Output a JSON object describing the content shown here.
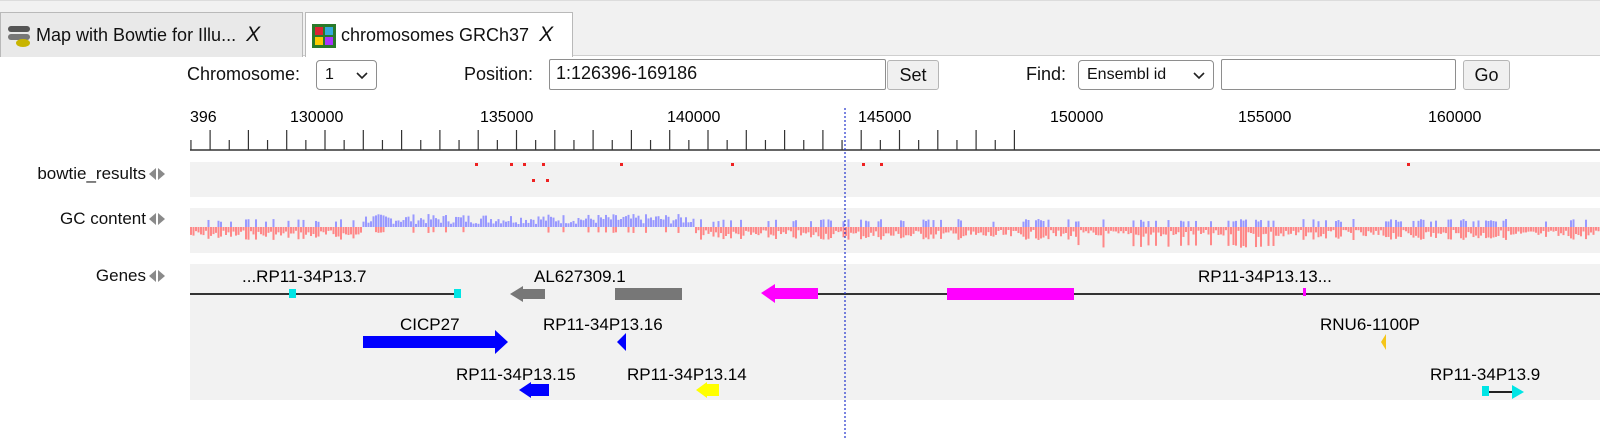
{
  "tabs": [
    {
      "label": "Map with Bowtie for Illu...",
      "close": "X",
      "active": false
    },
    {
      "label": "chromosomes GRCh37",
      "close": "X",
      "active": true
    }
  ],
  "controls": {
    "chromosome_label": "Chromosome:",
    "chromosome_value": "1",
    "position_label": "Position:",
    "position_value": "1:126396-169186",
    "set_label": "Set",
    "find_label": "Find:",
    "find_type": "Ensembl id",
    "find_value": "",
    "go_label": "Go"
  },
  "ruler": {
    "ticks": [
      "396",
      "130000",
      "135000",
      "140000",
      "145000",
      "150000",
      "155000",
      "160000"
    ]
  },
  "tracks": {
    "bowtie_label": "bowtie_results",
    "gc_label": "GC content",
    "genes_label": "Genes"
  },
  "genes": [
    {
      "id": "g1",
      "label": "...RP11-34P13.7",
      "color": "#333333"
    },
    {
      "id": "g2",
      "label": "AL627309.1",
      "color": "#777777"
    },
    {
      "id": "g3",
      "label": "RP11-34P13.13...",
      "color": "#ff00ff"
    },
    {
      "id": "g4",
      "label": "CICP27",
      "color": "#0000ff"
    },
    {
      "id": "g5",
      "label": "RP11-34P13.16",
      "color": "#0000ff"
    },
    {
      "id": "g6",
      "label": "RNU6-1100P",
      "color": "#f5c518"
    },
    {
      "id": "g7",
      "label": "RP11-34P13.15",
      "color": "#0000ff"
    },
    {
      "id": "g8",
      "label": "RP11-34P13.14",
      "color": "#ffff00"
    },
    {
      "id": "g9",
      "label": "RP11-34P13.9",
      "color": "#00ffff"
    }
  ],
  "colors": {
    "gc_high": "#9999ff",
    "gc_low": "#ff8888",
    "bowtie_hit": "#ee2222",
    "cursor_line": "#2233cc",
    "track_bg": "#f2f2f2"
  }
}
